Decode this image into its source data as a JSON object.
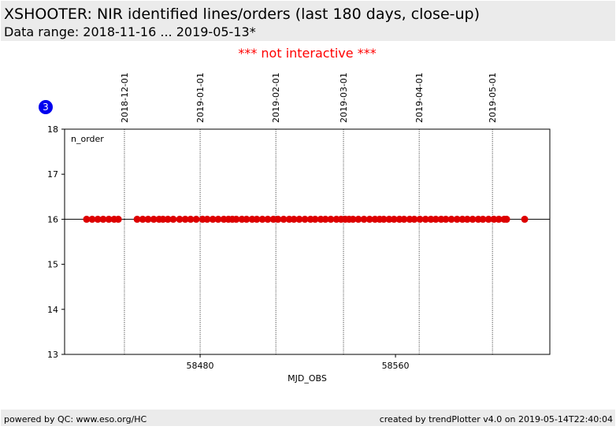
{
  "header": {
    "title": "XSHOOTER: NIR identified lines/orders (last 180 days, close-up)",
    "subtitle": "Data range: 2018-11-16 ... 2019-05-13*"
  },
  "notice": "*** not interactive ***",
  "badge": "3",
  "footer": {
    "left": "powered by QC: www.eso.org/HC",
    "right": "created by trendPlotter v4.0 on 2019-05-14T22:40:04"
  },
  "chart_data": {
    "type": "scatter",
    "ylabel": "n_order",
    "xlabel": "MJD_OBS",
    "color": "#dd0000",
    "x": [
      58433.5,
      58435.8,
      58438.1,
      58440.3,
      58442.6,
      58444.8,
      58446.5,
      58454.2,
      58456.5,
      58458.7,
      58461.0,
      58463.2,
      58464.8,
      58466.8,
      58469.0,
      58471.6,
      58473.9,
      58476.1,
      58478.4,
      58481.0,
      58482.9,
      58485.2,
      58487.4,
      58489.7,
      58491.6,
      58493.2,
      58494.8,
      58497.1,
      58499.0,
      58501.3,
      58503.2,
      58505.5,
      58507.7,
      58510.0,
      58511.9,
      58514.2,
      58516.5,
      58518.4,
      58520.6,
      58522.9,
      58525.2,
      58527.1,
      58529.4,
      58531.3,
      58533.5,
      58535.8,
      58537.7,
      58539.4,
      58541.0,
      58542.6,
      58544.8,
      58547.1,
      58549.4,
      58551.6,
      58553.5,
      58555.2,
      58557.4,
      58559.4,
      58561.6,
      58563.5,
      58565.8,
      58567.7,
      58570.0,
      58572.3,
      58574.5,
      58576.5,
      58578.7,
      58580.6,
      58582.9,
      58585.2,
      58587.4,
      58589.4,
      58591.6,
      58593.9,
      58595.8,
      58598.1,
      58600.3,
      58602.3,
      58604.5,
      58605.5,
      58612.9
    ],
    "values": [
      16,
      16,
      16,
      16,
      16,
      16,
      16,
      16,
      16,
      16,
      16,
      16,
      16,
      16,
      16,
      16,
      16,
      16,
      16,
      16,
      16,
      16,
      16,
      16,
      16,
      16,
      16,
      16,
      16,
      16,
      16,
      16,
      16,
      16,
      16,
      16,
      16,
      16,
      16,
      16,
      16,
      16,
      16,
      16,
      16,
      16,
      16,
      16,
      16,
      16,
      16,
      16,
      16,
      16,
      16,
      16,
      16,
      16,
      16,
      16,
      16,
      16,
      16,
      16,
      16,
      16,
      16,
      16,
      16,
      16,
      16,
      16,
      16,
      16,
      16,
      16,
      16,
      16,
      16,
      16,
      16
    ],
    "reference_line": 16,
    "xlim": [
      58424.5,
      58623.2
    ],
    "xticks": [
      58480,
      58560
    ],
    "ylim": [
      13,
      18
    ],
    "yticks": [
      13,
      14,
      15,
      16,
      17,
      18
    ],
    "date_lines": [
      {
        "value": 58449.0,
        "label": "2018-12-01"
      },
      {
        "value": 58480.0,
        "label": "2019-01-01"
      },
      {
        "value": 58511.0,
        "label": "2019-02-01"
      },
      {
        "value": 58538.7,
        "label": "2019-03-01"
      },
      {
        "value": 58569.7,
        "label": "2019-04-01"
      },
      {
        "value": 58599.7,
        "label": "2019-05-01"
      }
    ]
  }
}
